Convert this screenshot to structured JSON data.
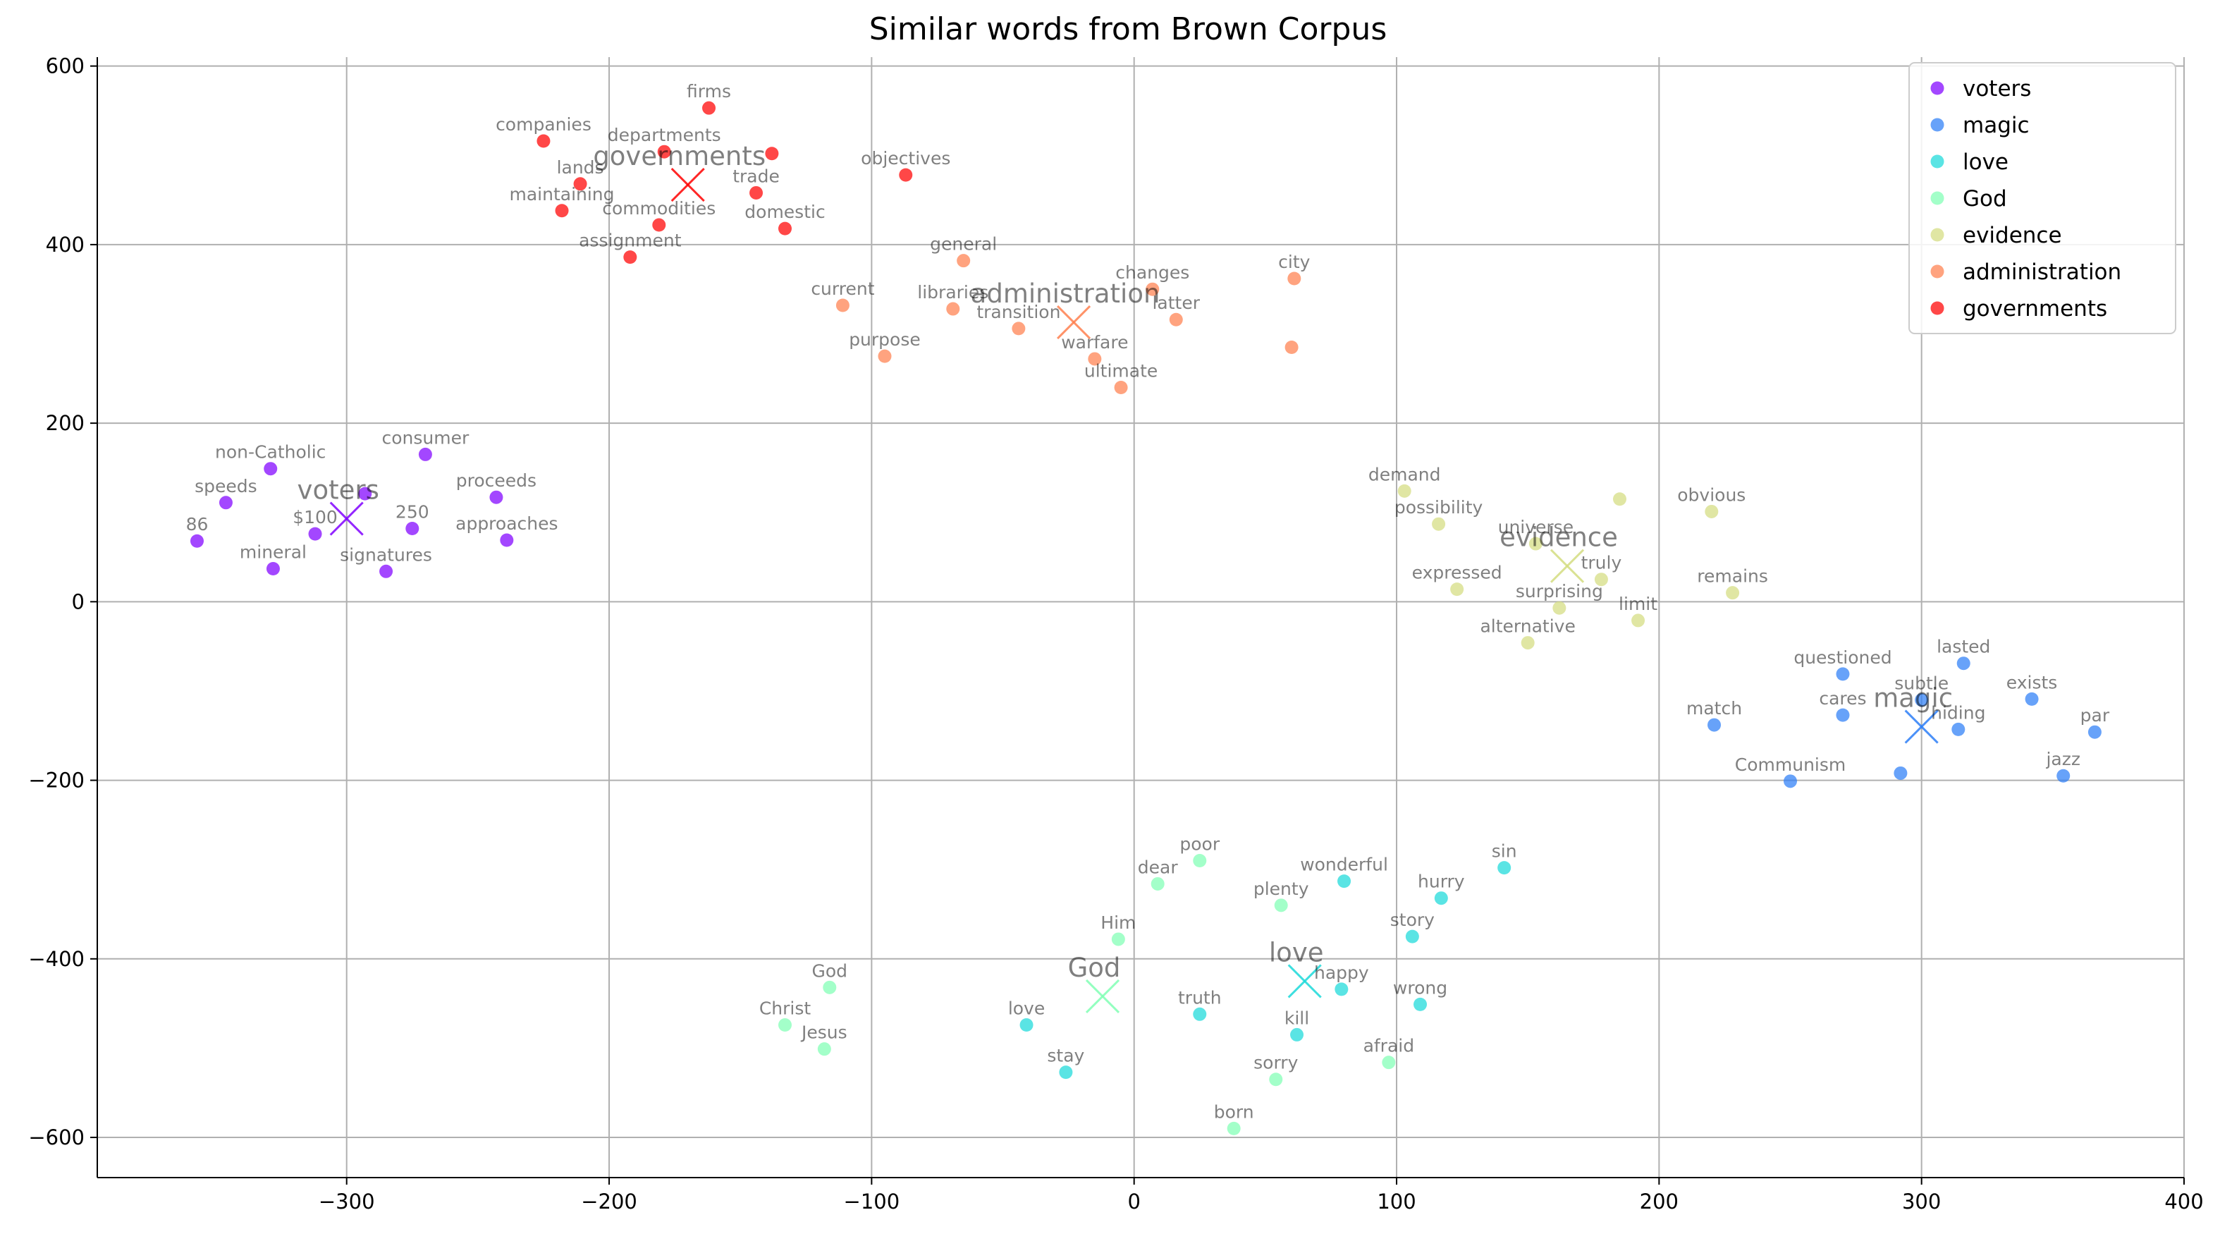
{
  "chart_data": {
    "type": "scatter",
    "title": "Similar words from Brown Corpus",
    "xlabel": "",
    "ylabel": "",
    "xlim": [
      -395,
      400
    ],
    "ylim": [
      -645,
      610
    ],
    "xticks": [
      -300,
      -200,
      -100,
      0,
      100,
      200,
      300,
      400
    ],
    "xtick_labels": [
      "−300",
      "−200",
      "−100",
      "0",
      "100",
      "200",
      "300",
      "400"
    ],
    "yticks": [
      -600,
      -400,
      -200,
      0,
      200,
      400,
      600
    ],
    "ytick_labels": [
      "−600",
      "−400",
      "−200",
      "0",
      "200",
      "400",
      "600"
    ],
    "grid": true,
    "legend_position": "top-right",
    "series": [
      {
        "name": "voters",
        "color": "#8000ff",
        "centroid": {
          "label": "voters",
          "x": -300,
          "y": 93
        },
        "points": [
          {
            "label": "non-Catholic",
            "x": -329,
            "y": 149
          },
          {
            "label": "consumer",
            "x": -270,
            "y": 165
          },
          {
            "label": "speeds",
            "x": -346,
            "y": 111
          },
          {
            "label": "proceeds",
            "x": -243,
            "y": 117
          },
          {
            "label": "",
            "x": -293,
            "y": 121
          },
          {
            "label": "86",
            "x": -357,
            "y": 68
          },
          {
            "label": "$100",
            "x": -312,
            "y": 76
          },
          {
            "label": "250",
            "x": -275,
            "y": 82
          },
          {
            "label": "approaches",
            "x": -239,
            "y": 69
          },
          {
            "label": "mineral",
            "x": -328,
            "y": 37
          },
          {
            "label": "signatures",
            "x": -285,
            "y": 34
          }
        ]
      },
      {
        "name": "magic",
        "color": "#2c7ef7",
        "centroid": {
          "label": "magic",
          "x": 300,
          "y": -140
        },
        "points": [
          {
            "label": "questioned",
            "x": 270,
            "y": -81
          },
          {
            "label": "lasted",
            "x": 316,
            "y": -69
          },
          {
            "label": "subtle",
            "x": 300,
            "y": -110
          },
          {
            "label": "exists",
            "x": 342,
            "y": -109
          },
          {
            "label": "cares",
            "x": 270,
            "y": -127
          },
          {
            "label": "hiding",
            "x": 314,
            "y": -143
          },
          {
            "label": "match",
            "x": 221,
            "y": -138
          },
          {
            "label": "par",
            "x": 366,
            "y": -146
          },
          {
            "label": "Communism",
            "x": 250,
            "y": -201
          },
          {
            "label": "",
            "x": 292,
            "y": -192
          },
          {
            "label": "jazz",
            "x": 354,
            "y": -195
          }
        ]
      },
      {
        "name": "love",
        "color": "#1bd9d9",
        "centroid": {
          "label": "love",
          "x": 65,
          "y": -425
        },
        "points": [
          {
            "label": "sin",
            "x": 141,
            "y": -298
          },
          {
            "label": "wonderful",
            "x": 80,
            "y": -313
          },
          {
            "label": "hurry",
            "x": 117,
            "y": -332
          },
          {
            "label": "story",
            "x": 106,
            "y": -375
          },
          {
            "label": "happy",
            "x": 79,
            "y": -434
          },
          {
            "label": "wrong",
            "x": 109,
            "y": -451
          },
          {
            "label": "truth",
            "x": 25,
            "y": -462
          },
          {
            "label": "kill",
            "x": 62,
            "y": -485
          },
          {
            "label": "love",
            "x": -41,
            "y": -474
          },
          {
            "label": "stay",
            "x": -26,
            "y": -527
          }
        ]
      },
      {
        "name": "God",
        "color": "#80ffb4",
        "centroid": {
          "label": "God",
          "x": -12,
          "y": -442
        },
        "points": [
          {
            "label": "poor",
            "x": 25,
            "y": -290
          },
          {
            "label": "dear",
            "x": 9,
            "y": -316
          },
          {
            "label": "plenty",
            "x": 56,
            "y": -340
          },
          {
            "label": "Him",
            "x": -6,
            "y": -378
          },
          {
            "label": "God",
            "x": -116,
            "y": -432
          },
          {
            "label": "Christ",
            "x": -133,
            "y": -474
          },
          {
            "label": "Jesus",
            "x": -118,
            "y": -501
          },
          {
            "label": "afraid",
            "x": 97,
            "y": -516
          },
          {
            "label": "sorry",
            "x": 54,
            "y": -535
          },
          {
            "label": "born",
            "x": 38,
            "y": -590
          }
        ]
      },
      {
        "name": "evidence",
        "color": "#d4dd80",
        "centroid": {
          "label": "evidence",
          "x": 165,
          "y": 40
        },
        "points": [
          {
            "label": "demand",
            "x": 103,
            "y": 124
          },
          {
            "label": "",
            "x": 185,
            "y": 115
          },
          {
            "label": "obvious",
            "x": 220,
            "y": 101
          },
          {
            "label": "possibility",
            "x": 116,
            "y": 87
          },
          {
            "label": "universe",
            "x": 153,
            "y": 65
          },
          {
            "label": "truly",
            "x": 178,
            "y": 25
          },
          {
            "label": "expressed",
            "x": 123,
            "y": 14
          },
          {
            "label": "remains",
            "x": 228,
            "y": 10
          },
          {
            "label": "surprising",
            "x": 162,
            "y": -7
          },
          {
            "label": "limit",
            "x": 192,
            "y": -21
          },
          {
            "label": "alternative",
            "x": 150,
            "y": -46
          }
        ]
      },
      {
        "name": "administration",
        "color": "#ff7f4e",
        "centroid": {
          "label": "administration",
          "x": -23,
          "y": 313
        },
        "points": [
          {
            "label": "general",
            "x": -65,
            "y": 382
          },
          {
            "label": "city",
            "x": 61,
            "y": 362
          },
          {
            "label": "changes",
            "x": 7,
            "y": 350
          },
          {
            "label": "current",
            "x": -111,
            "y": 332
          },
          {
            "label": "libraries",
            "x": -69,
            "y": 328
          },
          {
            "label": "latter",
            "x": 16,
            "y": 316
          },
          {
            "label": "transition",
            "x": -44,
            "y": 306
          },
          {
            "label": "warfare",
            "x": -15,
            "y": 272
          },
          {
            "label": "",
            "x": 60,
            "y": 285
          },
          {
            "label": "purpose",
            "x": -95,
            "y": 275
          },
          {
            "label": "ultimate",
            "x": -5,
            "y": 240
          }
        ]
      },
      {
        "name": "governments",
        "color": "#ff0000",
        "centroid": {
          "label": "governments",
          "x": -170,
          "y": 467
        },
        "points": [
          {
            "label": "firms",
            "x": -162,
            "y": 553
          },
          {
            "label": "companies",
            "x": -225,
            "y": 516
          },
          {
            "label": "departments",
            "x": -179,
            "y": 504
          },
          {
            "label": "",
            "x": -138,
            "y": 502
          },
          {
            "label": "objectives",
            "x": -87,
            "y": 478
          },
          {
            "label": "lands",
            "x": -211,
            "y": 468
          },
          {
            "label": "trade",
            "x": -144,
            "y": 458
          },
          {
            "label": "maintaining",
            "x": -218,
            "y": 438
          },
          {
            "label": "commodities",
            "x": -181,
            "y": 422
          },
          {
            "label": "domestic",
            "x": -133,
            "y": 418
          },
          {
            "label": "assignment",
            "x": -192,
            "y": 386
          }
        ]
      }
    ]
  }
}
